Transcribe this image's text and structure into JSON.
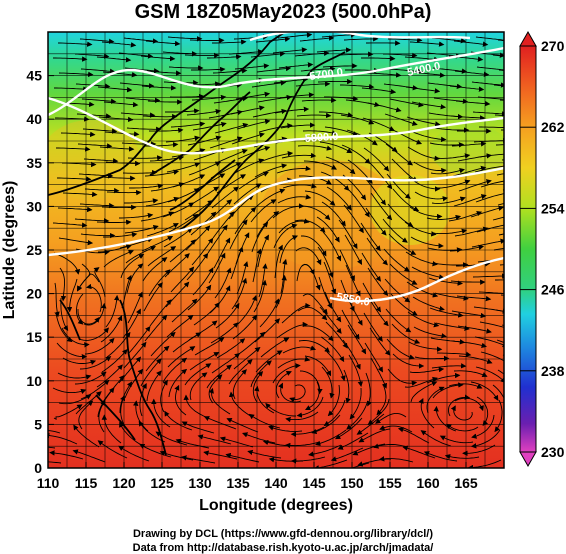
{
  "title": "GSM 18Z05May2023 (500.0hPa)",
  "axes": {
    "x_label": "Longitude (degrees)",
    "y_label": "Latitude (degrees)",
    "x_ticks": [
      "110",
      "115",
      "120",
      "125",
      "130",
      "135",
      "140",
      "145",
      "150",
      "155",
      "160",
      "165"
    ],
    "y_ticks": [
      "0",
      "5",
      "10",
      "15",
      "20",
      "25",
      "30",
      "35",
      "40",
      "45"
    ],
    "x_range": [
      110,
      170
    ],
    "y_range": [
      0,
      50
    ]
  },
  "colorbar": {
    "ticks": [
      "270",
      "262",
      "254",
      "246",
      "238",
      "230"
    ],
    "range": [
      230,
      270
    ],
    "colors": [
      "#e040c0",
      "#6a1fb0",
      "#2030d0",
      "#1e8ae0",
      "#20d0e0",
      "#30d080",
      "#40d040",
      "#b0e020",
      "#f0d020",
      "#f5a020",
      "#f06020",
      "#e02020"
    ]
  },
  "contour_labels": [
    "5400.0",
    "5700.0",
    "5800.0",
    "5850.0"
  ],
  "credits": [
    "Drawing by DCL (https://www.gfd-dennou.org/library/dcl/)",
    "Data from http://database.rish.kyoto-u.ac.jp/arch/jmadata/"
  ]
}
